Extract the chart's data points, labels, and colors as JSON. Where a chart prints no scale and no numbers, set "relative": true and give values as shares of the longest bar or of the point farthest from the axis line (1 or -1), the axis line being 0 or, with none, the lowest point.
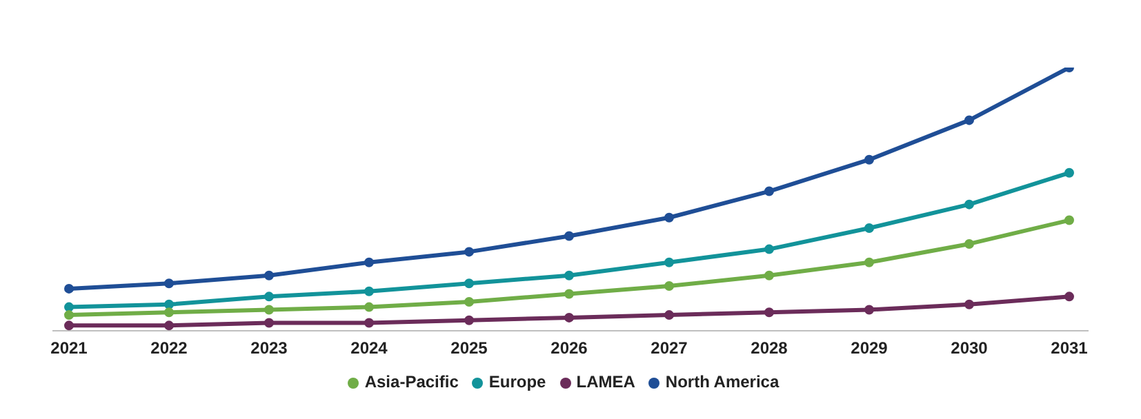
{
  "chart_data": {
    "type": "line",
    "relative": true,
    "categories": [
      "2021",
      "2022",
      "2023",
      "2024",
      "2025",
      "2026",
      "2027",
      "2028",
      "2029",
      "2030",
      "2031"
    ],
    "series": [
      {
        "name": "North America",
        "color": "#1f4e96",
        "values": [
          0.16,
          0.18,
          0.21,
          0.26,
          0.3,
          0.36,
          0.43,
          0.53,
          0.65,
          0.8,
          1
        ]
      },
      {
        "name": "Europe",
        "color": "#12939a",
        "values": [
          0.09,
          0.1,
          0.13,
          0.15,
          0.18,
          0.21,
          0.26,
          0.31,
          0.39,
          0.48,
          0.6
        ]
      },
      {
        "name": "Asia-Pacific",
        "color": "#70ad47",
        "values": [
          0.06,
          0.07,
          0.08,
          0.09,
          0.11,
          0.14,
          0.17,
          0.21,
          0.26,
          0.33,
          0.42
        ]
      },
      {
        "name": "LAMEA",
        "color": "#6b2c5a",
        "values": [
          0.02,
          0.02,
          0.03,
          0.03,
          0.04,
          0.05,
          0.06,
          0.07,
          0.08,
          0.1,
          0.13
        ]
      }
    ],
    "marker": "circle",
    "legend": "bottom",
    "grid": false
  }
}
